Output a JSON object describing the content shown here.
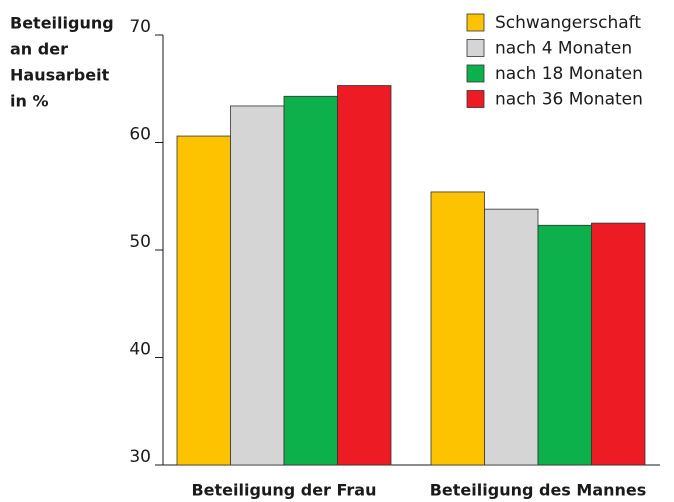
{
  "chart_data": {
    "type": "bar",
    "ylabel": [
      "Beteiligung",
      "an der",
      "Hausarbeit",
      "in %"
    ],
    "categories": [
      "Beteiligung der Frau",
      "Beteiligung des Mannes"
    ],
    "series": [
      {
        "name": "Schwangerschaft",
        "color": "#fdc300",
        "values": [
          60.6,
          55.4
        ]
      },
      {
        "name": "nach 4 Monaten",
        "color": "#d5d5d5",
        "values": [
          63.4,
          53.8
        ]
      },
      {
        "name": "nach 18 Monaten",
        "color": "#0db14b",
        "values": [
          64.3,
          52.3
        ]
      },
      {
        "name": "nach 36 Monaten",
        "color": "#ed1c24",
        "values": [
          65.3,
          52.5
        ]
      }
    ],
    "ylim": [
      30,
      70
    ],
    "yticks": [
      30,
      40,
      50,
      60,
      70
    ],
    "legend": "upper right"
  }
}
